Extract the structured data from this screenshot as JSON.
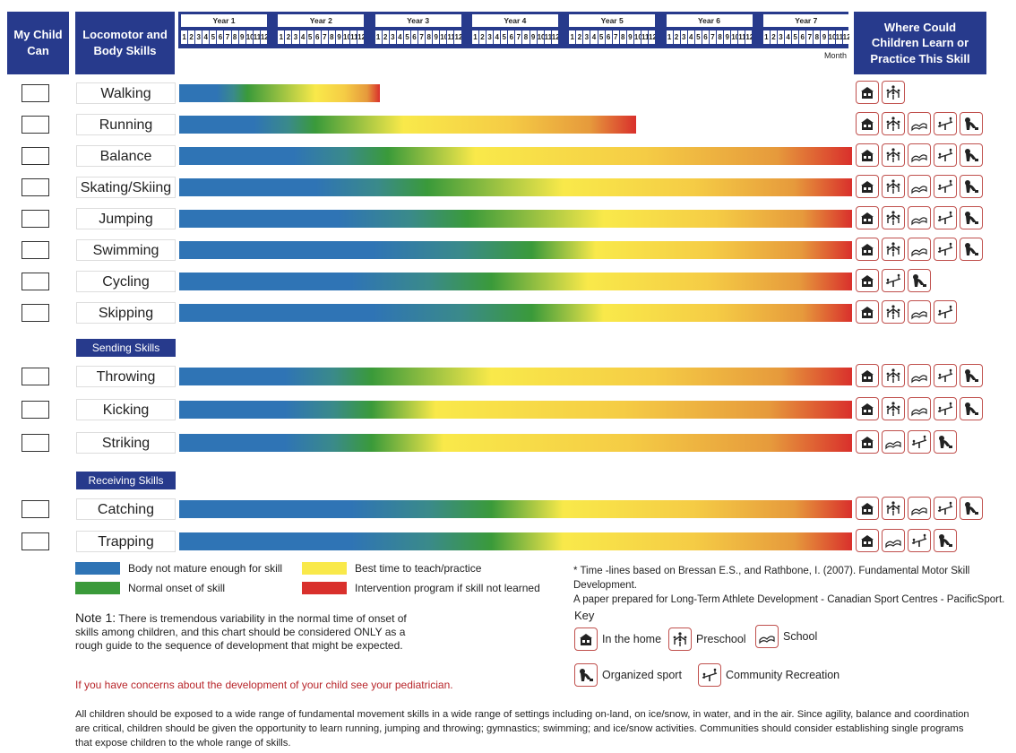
{
  "header": {
    "my_child_can": "My Child Can",
    "skills_heading": "Locomotor and Body Skills",
    "where_heading": "Where Could Children Learn or Practice This Skill",
    "years": [
      "Year 1",
      "Year 2",
      "Year 3",
      "Year 4",
      "Year 5",
      "Year 6",
      "Year 7"
    ],
    "months": [
      "1",
      "2",
      "3",
      "4",
      "5",
      "6",
      "7",
      "8",
      "9",
      "10",
      "11",
      "12"
    ],
    "month_label": "Month"
  },
  "colors": {
    "header_blue": "#273a8c",
    "not_mature": "#2f74b5",
    "onset": "#3a9a3a",
    "best_time": "#f9e94a",
    "intervention": "#d9302c",
    "icon_border": "#c0504d",
    "concern_text": "#b8262b"
  },
  "chart_data": {
    "type": "bar",
    "x_unit": "months of age",
    "xlim": [
      0,
      84
    ],
    "groups": [
      {
        "label": "",
        "skills": [
          {
            "name": "Walking",
            "normal_onset_month": 8.5,
            "best_time_month": 17,
            "end_month": 25,
            "places": [
              "home",
              "preschool"
            ]
          },
          {
            "name": "Running",
            "normal_onset_month": 17,
            "best_time_month": 28,
            "end_month": 57,
            "places": [
              "home",
              "preschool",
              "school",
              "community",
              "sport"
            ]
          },
          {
            "name": "Balance",
            "normal_onset_month": 26,
            "best_time_month": 37,
            "end_month": 84,
            "places": [
              "home",
              "preschool",
              "school",
              "community",
              "sport"
            ]
          },
          {
            "name": "Skating/Skiing",
            "normal_onset_month": 31,
            "best_time_month": 48,
            "end_month": 84,
            "places": [
              "home",
              "preschool",
              "school",
              "community",
              "sport"
            ]
          },
          {
            "name": "Jumping",
            "normal_onset_month": 36,
            "best_time_month": 53,
            "end_month": 84,
            "places": [
              "home",
              "preschool",
              "school",
              "community",
              "sport"
            ]
          },
          {
            "name": "Swimming",
            "normal_onset_month": 44,
            "best_time_month": 52,
            "end_month": 84,
            "places": [
              "home",
              "preschool",
              "school",
              "community",
              "sport"
            ]
          },
          {
            "name": "Cycling",
            "normal_onset_month": 39,
            "best_time_month": 51,
            "end_month": 84,
            "places": [
              "home",
              "community",
              "sport"
            ]
          },
          {
            "name": "Skipping",
            "normal_onset_month": 44,
            "best_time_month": 53,
            "end_month": 84,
            "places": [
              "home",
              "preschool",
              "school",
              "community"
            ]
          }
        ]
      },
      {
        "label": "Sending Skills",
        "skills": [
          {
            "name": "Throwing",
            "normal_onset_month": 24,
            "best_time_month": 39,
            "end_month": 84,
            "places": [
              "home",
              "preschool",
              "school",
              "community",
              "sport"
            ]
          },
          {
            "name": "Kicking",
            "normal_onset_month": 24,
            "best_time_month": 32,
            "end_month": 84,
            "places": [
              "home",
              "preschool",
              "school",
              "community",
              "sport"
            ]
          },
          {
            "name": "Striking",
            "normal_onset_month": 24,
            "best_time_month": 33,
            "end_month": 84,
            "places": [
              "home",
              "school",
              "community",
              "sport"
            ]
          }
        ]
      },
      {
        "label": "Receiving Skills",
        "skills": [
          {
            "name": "Catching",
            "normal_onset_month": 39,
            "best_time_month": 48,
            "end_month": 84,
            "places": [
              "home",
              "preschool",
              "school",
              "community",
              "sport"
            ]
          },
          {
            "name": "Trapping",
            "normal_onset_month": 39,
            "best_time_month": 48,
            "end_month": 84,
            "places": [
              "home",
              "school",
              "community",
              "sport"
            ]
          }
        ]
      }
    ],
    "legend": [
      {
        "label": "Body not mature enough for skill",
        "color": "#2f74b5"
      },
      {
        "label": "Best time to teach/practice",
        "color": "#f9e94a"
      },
      {
        "label": "Normal onset of skill",
        "color": "#3a9a3a"
      },
      {
        "label": "Intervention program if skill not learned",
        "color": "#d9302c"
      }
    ]
  },
  "citation": [
    "* Time -lines based on Bressan E.S., and Rathbone, I.  (2007). Fundamental Motor Skill Development.",
    "A paper prepared for Long-Term Athlete Development - Canadian Sport Centres - PacificSport."
  ],
  "key": {
    "title": "Key",
    "items": {
      "home": "In the home",
      "preschool": "Preschool",
      "school": "School",
      "sport": "Organized sport",
      "community": "Community Recreation"
    }
  },
  "note": {
    "label": "Note 1:",
    "text": " There is tremendous variability in the normal time of onset of skills among children, and this chart should be  considered ONLY as a rough guide to the sequence  of development that might be expected.",
    "concern": "If you have concerns about the development of your child see  your pediatrician."
  },
  "footer": "All children should be exposed to a wide range of fundamental movement skills in a wide range of settings including on-land, on ice/snow, in water, and in the air. Since agility, balance and coordination are critical, children should be given the opportunity to learn running, jumping and throwing; gymnastics; swimming; and ice/snow activities.  Communities should  consider establishing single programs that expose children to the whole range of skills."
}
